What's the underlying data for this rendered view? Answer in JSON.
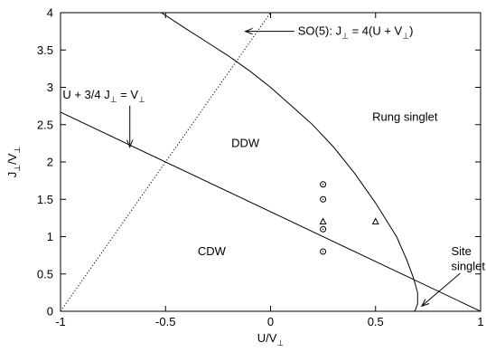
{
  "chart_data": {
    "type": "scatter",
    "xlabel": "U/V⊥",
    "ylabel": "J⊥/V⊥",
    "xlim": [
      -1,
      1
    ],
    "ylim": [
      0,
      4
    ],
    "x_ticks": [
      -1,
      -0.5,
      0,
      0.5,
      1
    ],
    "x_tick_labels": [
      "-1",
      "-0.5",
      "0",
      "0.5",
      "1"
    ],
    "y_ticks": [
      0,
      0.5,
      1,
      1.5,
      2,
      2.5,
      3,
      3.5,
      4
    ],
    "y_tick_labels": [
      "0",
      "0.5",
      "1",
      "1.5",
      "2",
      "2.5",
      "3",
      "3.5",
      "4"
    ],
    "grid": false,
    "legend": "none",
    "region_labels": [
      {
        "text": "DDW",
        "x": -0.12,
        "y": 2.2
      },
      {
        "text": "CDW",
        "x": -0.28,
        "y": 0.75
      },
      {
        "text": "Rung singlet",
        "x": 0.64,
        "y": 2.55
      }
    ],
    "annotations": [
      {
        "text": "SO(5): J⊥ = 4(U + V⊥)",
        "text_x": 0.13,
        "text_y": 3.75,
        "arrow_tip": [
          -0.12,
          3.75
        ]
      },
      {
        "text": "U + 3/4 J⊥ = V⊥",
        "text_x": -0.99,
        "text_y": 2.9,
        "arrow_tip": [
          -0.67,
          2.2
        ]
      },
      {
        "text": "Site",
        "text_x": 0.86,
        "text_y": 0.8,
        "arrow_tip": [
          0.72,
          0.07
        ]
      },
      {
        "text": "singlet",
        "text_x": 0.86,
        "text_y": 0.6
      }
    ],
    "lines": [
      {
        "type": "solid",
        "equation": "U + 3/4 J⊥ = V⊥",
        "x": [
          -1,
          1
        ],
        "y": [
          2.667,
          0
        ]
      },
      {
        "type": "dotted",
        "equation": "J⊥ = 4(U + V⊥)",
        "x": [
          -1,
          0
        ],
        "y": [
          0,
          4
        ]
      },
      {
        "type": "solid",
        "boundary": "DDW / Rung singlet",
        "x": [
          -0.52,
          -0.4,
          -0.3,
          -0.2,
          -0.1,
          0,
          0.1,
          0.2,
          0.3,
          0.4,
          0.5,
          0.6,
          0.65,
          0.68,
          0.7,
          0.7,
          0.69,
          0.67
        ],
        "y": [
          4.0,
          3.78,
          3.6,
          3.42,
          3.22,
          3.0,
          2.75,
          2.5,
          2.2,
          1.85,
          1.45,
          1.0,
          0.68,
          0.45,
          0.25,
          0.1,
          0.02,
          -0.05
        ]
      }
    ],
    "series": [
      {
        "marker": "circle",
        "x": [
          0.25,
          0.25,
          0.25,
          0.25
        ],
        "y": [
          1.7,
          1.5,
          1.1,
          0.8
        ]
      },
      {
        "marker": "triangle",
        "x": [
          0.25,
          0.5
        ],
        "y": [
          1.2,
          1.2
        ]
      }
    ]
  }
}
